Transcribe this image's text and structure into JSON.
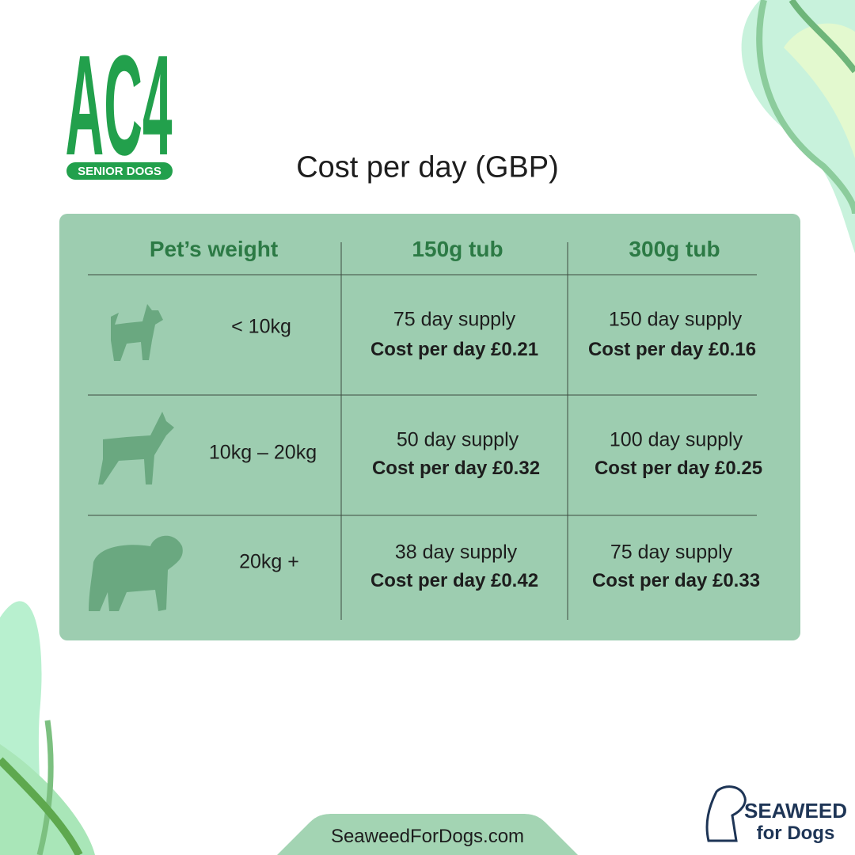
{
  "logo": {
    "mark": "AC4",
    "tagline": "SENIOR DOGS"
  },
  "title": "Cost per day (GBP)",
  "table": {
    "headers": [
      "Pet’s weight",
      "150g tub",
      "300g tub"
    ],
    "rows": [
      {
        "weight": "< 10kg",
        "cells": [
          {
            "supply": "75 day supply",
            "cost": "Cost per day £0.21"
          },
          {
            "supply": "150 day supply",
            "cost": "Cost per day £0.16"
          }
        ]
      },
      {
        "weight": "10kg – 20kg",
        "cells": [
          {
            "supply": "50 day supply",
            "cost": "Cost per day £0.32"
          },
          {
            "supply": "100 day supply",
            "cost": "Cost per day £0.25"
          }
        ]
      },
      {
        "weight": "20kg +",
        "cells": [
          {
            "supply": "38 day supply",
            "cost": "Cost per day £0.42"
          },
          {
            "supply": "75 day supply",
            "cost": "Cost per day £0.33"
          }
        ]
      }
    ]
  },
  "footer": {
    "url": "SeaweedForDogs.com"
  },
  "brand": {
    "line1": "SEAWEED",
    "line2": "for Dogs"
  }
}
